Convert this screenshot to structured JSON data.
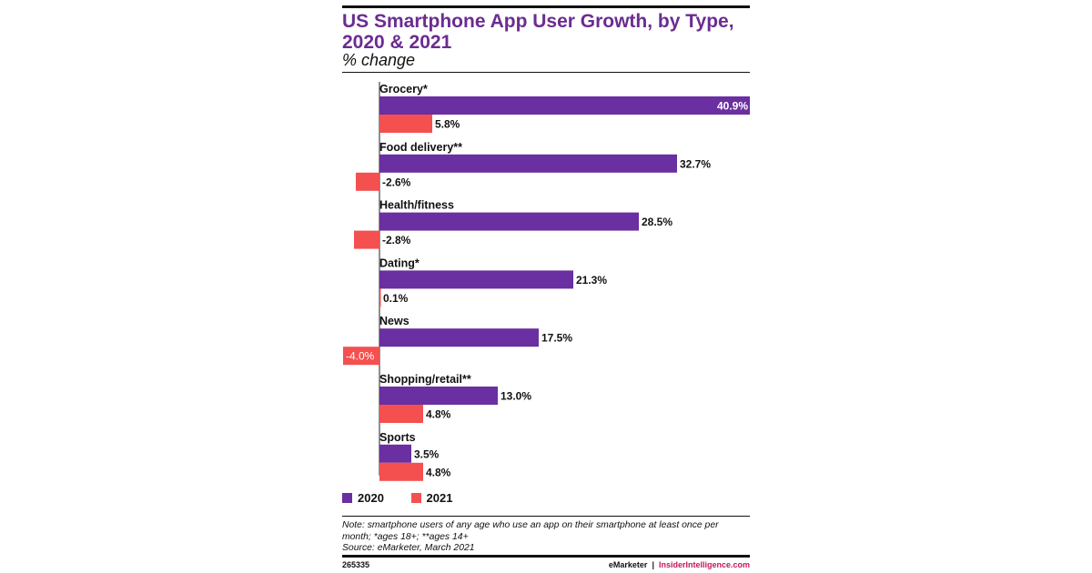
{
  "header": {
    "title": "US Smartphone App User Growth, by Type, 2020 & 2021",
    "subtitle": "% change"
  },
  "legend": [
    {
      "label": "2020",
      "color": "#6a2fa0"
    },
    {
      "label": "2021",
      "color": "#f4504f"
    }
  ],
  "footer": {
    "note": "Note: smartphone users of any age who use an app on their smartphone at least once per month; *ages 18+; **ages 14+",
    "source": "Source: eMarketer, March 2021",
    "chart_id": "265335",
    "brand_left": "eMarketer",
    "separator": "|",
    "brand_right": "InsiderIntelligence.com"
  },
  "chart_data": {
    "type": "bar",
    "orientation": "horizontal",
    "categories": [
      "Grocery*",
      "Food delivery**",
      "Health/fitness",
      "Dating*",
      "News",
      "Shopping/retail**",
      "Sports"
    ],
    "series": [
      {
        "name": "2020",
        "color": "#6a2fa0",
        "values": [
          40.9,
          32.7,
          28.5,
          21.3,
          17.5,
          13.0,
          3.5
        ],
        "labels": [
          "40.9%",
          "32.7%",
          "28.5%",
          "21.3%",
          "17.5%",
          "13.0%",
          "3.5%"
        ]
      },
      {
        "name": "2021",
        "color": "#f4504f",
        "values": [
          5.8,
          -2.6,
          -2.8,
          0.1,
          -4.0,
          4.8,
          4.8
        ],
        "labels": [
          "5.8%",
          "-2.6%",
          "-2.8%",
          "0.1%",
          "-4.0%",
          "4.8%",
          "4.8%"
        ]
      }
    ],
    "title": "US Smartphone App User Growth, by Type, 2020 & 2021",
    "ylabel": "% change",
    "xlim": [
      -4.0,
      40.9
    ],
    "grid": false,
    "legend_position": "bottom-left"
  }
}
